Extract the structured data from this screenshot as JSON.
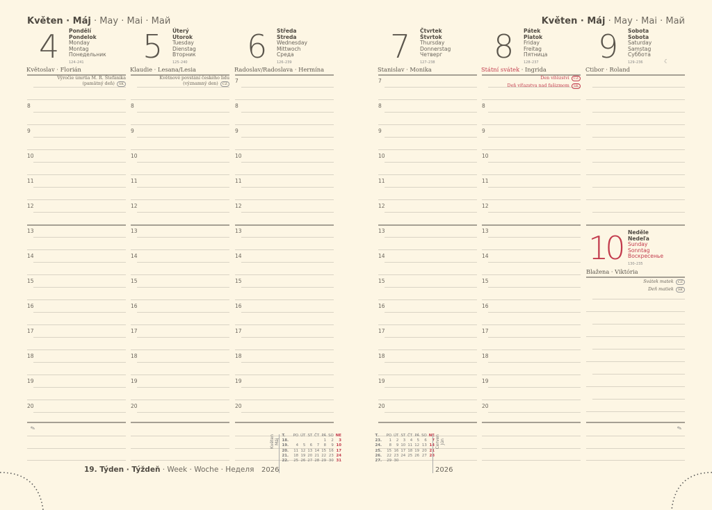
{
  "month_header": {
    "bold": "Květen · Máj",
    "rest": " · May · Mai · Май"
  },
  "days": [
    {
      "num": "4",
      "sk": "Pondělí",
      "cz": "Pondelok",
      "en": "Monday",
      "de": "Montag",
      "ru": "Понедельник",
      "ord": "124–241",
      "names": "Květoslav · Florián",
      "notes": [
        {
          "text": "Výročie úmrtia M. R. Štefánika",
          "text2": "(pamätný deň)",
          "badge": "SK"
        }
      ]
    },
    {
      "num": "5",
      "sk": "Úterý",
      "cz": "Utorok",
      "en": "Tuesday",
      "de": "Dienstag",
      "ru": "Вторник",
      "ord": "125–240",
      "names": "Klaudie · Lesana/Lesia",
      "notes": [
        {
          "text": "Květnové povstání českého lidu",
          "text2": "(významný den)",
          "badge": "CZ"
        }
      ]
    },
    {
      "num": "6",
      "sk": "Středa",
      "cz": "Streda",
      "en": "Wednesday",
      "de": "Mittwoch",
      "ru": "Среда",
      "ord": "126–239",
      "names": "Radoslav/Radoslava · Hermína",
      "notes": []
    },
    {
      "num": "7",
      "sk": "Čtvrtek",
      "cz": "Štvrtok",
      "en": "Thursday",
      "de": "Donnerstag",
      "ru": "Четверг",
      "ord": "127–238",
      "names": "Stanislav · Monika",
      "notes": []
    },
    {
      "num": "8",
      "sk": "Pátek",
      "cz": "Piatok",
      "en": "Friday",
      "de": "Freitag",
      "ru": "Пятница",
      "ord": "128–237",
      "names_red": "Státní svátek",
      "names": "Ingrida",
      "notes": [
        {
          "text": "Den vítězství",
          "badge": "CZ",
          "red": true
        },
        {
          "text": "Deň víťazstva nad fašizmom",
          "badge": "SK",
          "red": true
        }
      ]
    },
    {
      "num": "9",
      "sk": "Sobota",
      "cz": "Sobota",
      "en": "Saturday",
      "de": "Samstag",
      "ru": "Суббота",
      "ord": "129–236",
      "names": "Ctibor · Roland",
      "moon": "☾"
    },
    {
      "num": "10",
      "sk": "Neděle",
      "cz": "Nedeľa",
      "en": "Sunday",
      "de": "Sonntag",
      "ru": "Воскресенье",
      "ord": "130–235",
      "names": "Blažena · Viktória",
      "notes": [
        {
          "text": "Svátek matek",
          "badge": "CZ"
        },
        {
          "text": "Deň matiek",
          "badge": "SK"
        }
      ]
    }
  ],
  "hours": [
    "7",
    "8",
    "9",
    "10",
    "11",
    "12",
    "13",
    "14",
    "15",
    "16",
    "17",
    "18",
    "19",
    "20"
  ],
  "week": {
    "bold": "19. Týden · Týždeň",
    "rest": " · Week · Woche · Неделя"
  },
  "mini_header": [
    "T.",
    "PO",
    "ÚT",
    "ST",
    "ČT",
    "PÁ",
    "SO",
    "NE"
  ],
  "mini_may": {
    "label1": "Květen",
    "label2": "Máj",
    "year": "2026",
    "rows": [
      [
        "18.",
        "",
        "",
        "",
        "",
        "1",
        "2",
        "3"
      ],
      [
        "19.",
        "4",
        "5",
        "6",
        "7",
        "8",
        "9",
        "10"
      ],
      [
        "20.",
        "11",
        "12",
        "13",
        "14",
        "15",
        "16",
        "17"
      ],
      [
        "21.",
        "18",
        "19",
        "20",
        "21",
        "22",
        "23",
        "24"
      ],
      [
        "22.",
        "25",
        "26",
        "27",
        "28",
        "29",
        "30",
        "31"
      ]
    ]
  },
  "mini_june": {
    "label1": "Červen",
    "label2": "Jún",
    "year": "2026",
    "rows": [
      [
        "23.",
        "1",
        "2",
        "3",
        "4",
        "5",
        "6",
        "7"
      ],
      [
        "24.",
        "8",
        "9",
        "10",
        "11",
        "12",
        "13",
        "14"
      ],
      [
        "25.",
        "15",
        "16",
        "17",
        "18",
        "19",
        "20",
        "21"
      ],
      [
        "26.",
        "22",
        "23",
        "24",
        "25",
        "26",
        "27",
        "28"
      ],
      [
        "27.",
        "29",
        "30",
        "",
        "",
        "",
        "",
        ""
      ]
    ]
  },
  "colors": {
    "accent_red": "#c23a4c",
    "background": "#fdf6e4"
  }
}
